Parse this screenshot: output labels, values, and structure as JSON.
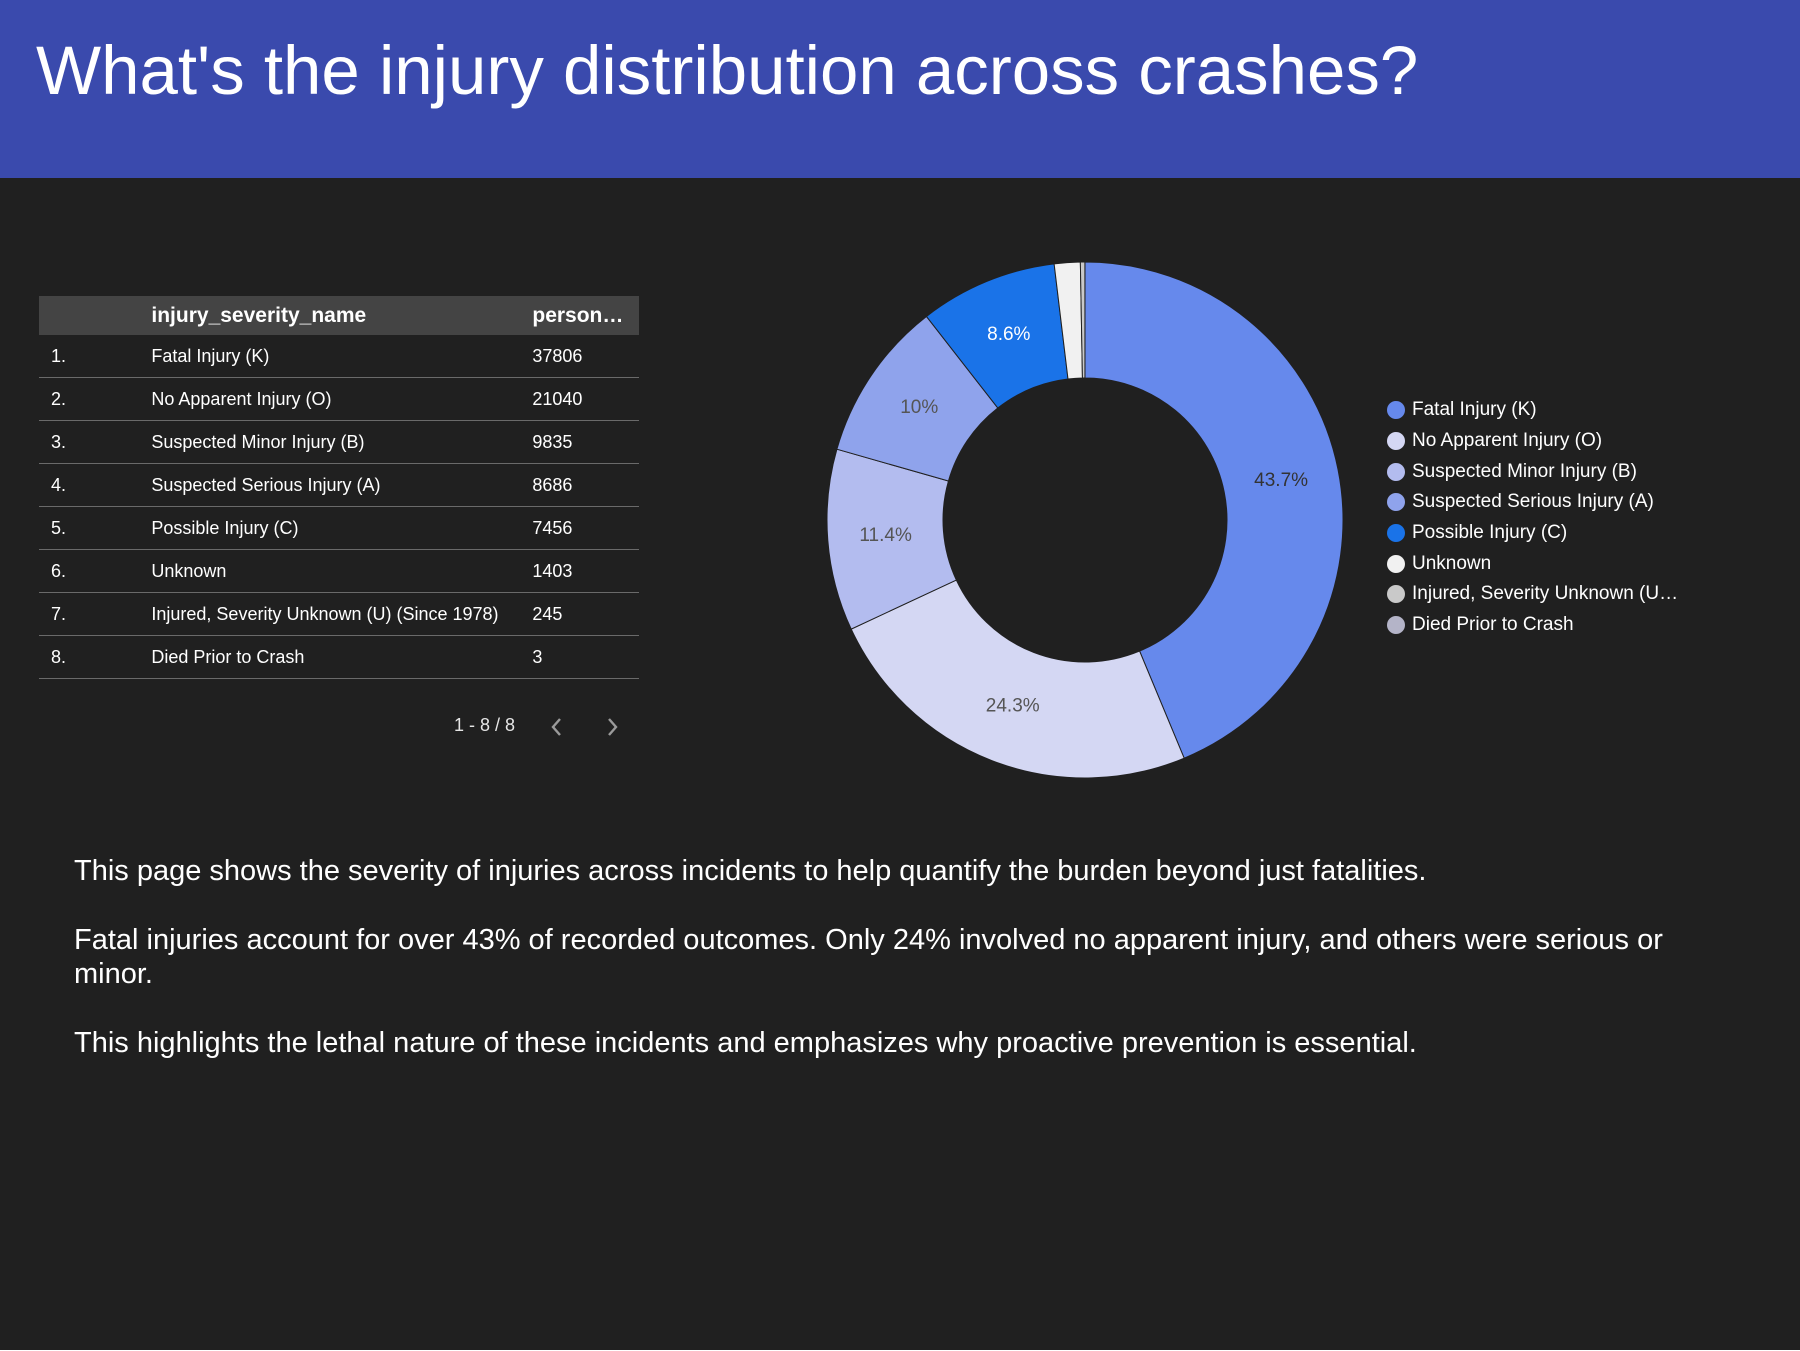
{
  "header": {
    "title": "What's the injury distribution across crashes?"
  },
  "colors": {
    "header_bg": "#3a4aad",
    "canvas_bg": "#202020"
  },
  "table": {
    "columns": [
      "",
      "injury_severity_name",
      "person…"
    ],
    "rows": [
      {
        "index": "1.",
        "name": "Fatal Injury (K)",
        "value": "37806"
      },
      {
        "index": "2.",
        "name": "No Apparent Injury (O)",
        "value": "21040"
      },
      {
        "index": "3.",
        "name": "Suspected Minor Injury (B)",
        "value": "9835"
      },
      {
        "index": "4.",
        "name": "Suspected Serious Injury (A)",
        "value": "8686"
      },
      {
        "index": "5.",
        "name": "Possible Injury (C)",
        "value": "7456"
      },
      {
        "index": "6.",
        "name": "Unknown",
        "value": "1403"
      },
      {
        "index": "7.",
        "name": "Injured, Severity Unknown (U) (Since 1978)",
        "value": "245"
      },
      {
        "index": "8.",
        "name": "Died Prior to Crash",
        "value": "3"
      }
    ],
    "pagination": {
      "range": "1 - 8 / 8",
      "prev_icon": "chevron-left-icon",
      "next_icon": "chevron-right-icon"
    }
  },
  "chart_data": {
    "type": "pie",
    "donut": true,
    "categories": [
      "Fatal Injury (K)",
      "No Apparent Injury (O)",
      "Suspected Minor Injury (B)",
      "Suspected Serious Injury (A)",
      "Possible Injury (C)",
      "Unknown",
      "Injured, Severity Unknown (U) (Since 1978)",
      "Died Prior to Crash"
    ],
    "values": [
      37806,
      21040,
      9835,
      8686,
      7456,
      1403,
      245,
      3
    ],
    "slice_labels": [
      "43.7%",
      "24.3%",
      "11.4%",
      "10%",
      "8.6%",
      "",
      "",
      ""
    ],
    "colors": [
      "#6689ec",
      "#d4d7f3",
      "#b3bcef",
      "#8fa3ec",
      "#1a73e8",
      "#f1f1f1",
      "#c9c9c9",
      "#b4b4c8"
    ],
    "label_colors": [
      "#333333",
      "#555555",
      "#555555",
      "#555555",
      "#ffffff",
      "",
      "",
      ""
    ],
    "legend": {
      "position": "right",
      "labels": [
        "Fatal Injury (K)",
        "No Apparent Injury (O)",
        "Suspected Minor Injury (B)",
        "Suspected Serious Injury (A)",
        "Possible Injury (C)",
        "Unknown",
        "Injured, Severity Unknown (U…",
        "Died Prior to Crash"
      ]
    }
  },
  "description": {
    "paragraphs": [
      "This page shows the severity of injuries across incidents to help quantify the burden beyond just fatalities.",
      "Fatal injuries account for over 43% of recorded outcomes. Only 24% involved no apparent injury, and others were serious or minor.",
      "This highlights the lethal nature of these incidents and emphasizes why proactive prevention is essential."
    ]
  }
}
